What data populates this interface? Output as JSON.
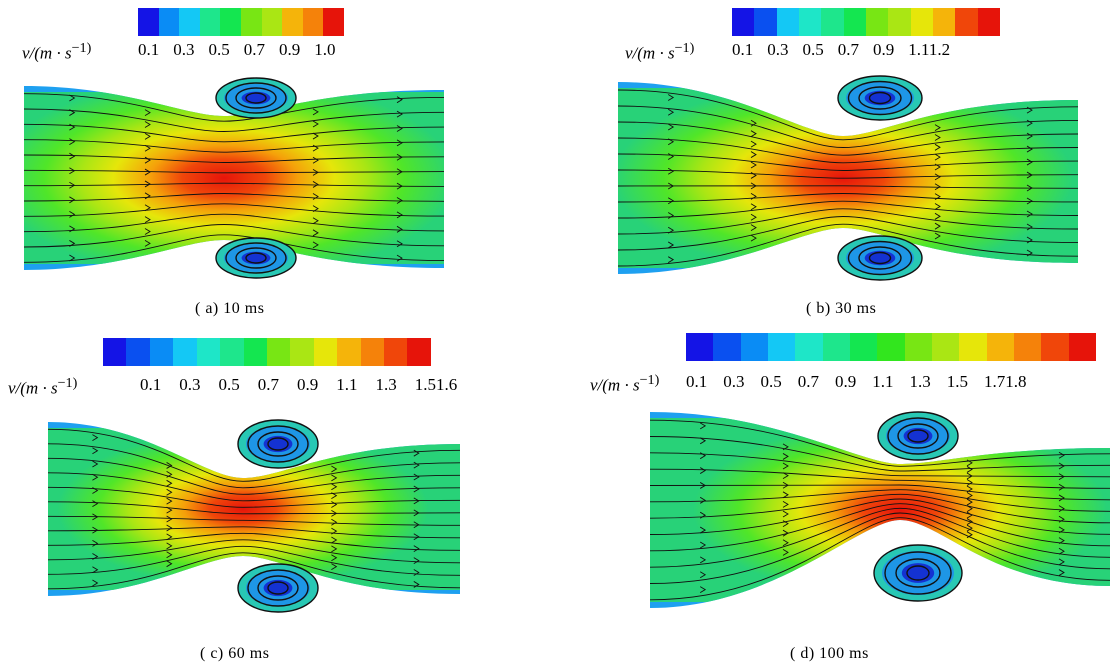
{
  "colormap": [
    "#1414e6",
    "#0a50f0",
    "#0a8cf5",
    "#14c8f5",
    "#1ee6c8",
    "#1ee68c",
    "#14e650",
    "#32e61e",
    "#78e614",
    "#aae614",
    "#e6e60a",
    "#f5b40a",
    "#f5820a",
    "#f0460a",
    "#e6140a"
  ],
  "panels": [
    {
      "unit_label": "v/(m · s",
      "unit_suffix": "−1)",
      "ticks": [
        "0.1",
        "0.3",
        "0.5",
        "0.7",
        "0.9",
        "1.0"
      ],
      "caption": "( a)  10  ms",
      "max_velocity": 1.0,
      "colors": 10
    },
    {
      "unit_label": "v/(m · s",
      "unit_suffix": "−1)",
      "ticks": [
        "0.1",
        "0.3",
        "0.5",
        "0.7",
        "0.9",
        "1.11.2"
      ],
      "caption": "( b)  30  ms",
      "max_velocity": 1.2,
      "colors": 12
    },
    {
      "unit_label": "v/(m · s",
      "unit_suffix": "−1)",
      "ticks": [
        "0.1",
        "0.3",
        "0.5",
        "0.7",
        "0.9",
        "1.1",
        "1.3",
        "1.51.6"
      ],
      "caption": "( c)  60  ms",
      "max_velocity": 1.6,
      "colors": 14
    },
    {
      "unit_label": "v/(m · s",
      "unit_suffix": "−1)",
      "ticks": [
        "0.1",
        "0.3",
        "0.5",
        "0.7",
        "0.9",
        "1.1",
        "1.3",
        "1.5",
        "1.71.8"
      ],
      "caption": "( d)  100  ms",
      "max_velocity": 1.8,
      "colors": 15
    }
  ]
}
